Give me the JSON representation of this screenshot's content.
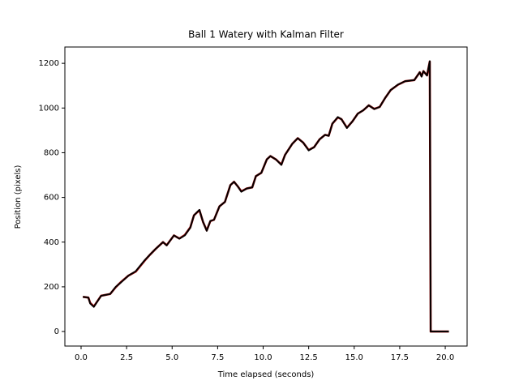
{
  "chart_data": {
    "type": "line",
    "title": "Ball 1 Watery with Kalman Filter",
    "xlabel": "Time elapsed (seconds)",
    "ylabel": "Position (pixels)",
    "x": [
      0.1,
      0.4,
      0.5,
      0.7,
      1.1,
      1.6,
      1.9,
      2.2,
      2.6,
      3.0,
      3.5,
      3.8,
      4.1,
      4.5,
      4.7,
      5.1,
      5.4,
      5.7,
      6.0,
      6.2,
      6.5,
      6.7,
      6.9,
      7.1,
      7.3,
      7.6,
      7.9,
      8.2,
      8.4,
      8.6,
      8.8,
      9.1,
      9.4,
      9.6,
      9.9,
      10.2,
      10.4,
      10.7,
      11.0,
      11.2,
      11.6,
      11.9,
      12.2,
      12.5,
      12.8,
      13.1,
      13.4,
      13.6,
      13.8,
      14.1,
      14.3,
      14.6,
      14.9,
      15.2,
      15.5,
      15.8,
      16.1,
      16.4,
      16.7,
      17.0,
      17.4,
      17.8,
      18.3,
      18.6,
      18.7,
      18.8,
      19.0,
      19.15,
      19.2,
      20.2
    ],
    "series": [
      {
        "color": "#8b0000",
        "values": [
          155,
          152,
          128,
          112,
          160,
          168,
          198,
          222,
          250,
          268,
          318,
          345,
          370,
          400,
          386,
          430,
          416,
          432,
          466,
          520,
          543,
          490,
          452,
          494,
          500,
          560,
          580,
          655,
          670,
          650,
          627,
          640,
          645,
          695,
          710,
          770,
          785,
          770,
          747,
          790,
          840,
          865,
          845,
          812,
          825,
          860,
          880,
          876,
          930,
          958,
          950,
          912,
          940,
          975,
          990,
          1012,
          996,
          1005,
          1045,
          1080,
          1104,
          1120,
          1125,
          1160,
          1142,
          1165,
          1146,
          1208,
          0,
          0
        ]
      },
      {
        "color": "#000000",
        "values": [
          155,
          152,
          125,
          110,
          160,
          168,
          200,
          220,
          250,
          270,
          320,
          345,
          370,
          400,
          385,
          430,
          415,
          430,
          465,
          520,
          545,
          490,
          450,
          495,
          500,
          560,
          580,
          655,
          670,
          650,
          625,
          640,
          645,
          695,
          710,
          770,
          785,
          770,
          745,
          790,
          840,
          865,
          845,
          810,
          825,
          860,
          880,
          875,
          930,
          960,
          950,
          910,
          940,
          975,
          990,
          1012,
          995,
          1005,
          1045,
          1080,
          1105,
          1120,
          1125,
          1160,
          1140,
          1165,
          1145,
          1210,
          0,
          0
        ]
      }
    ],
    "xlim": [
      -0.89,
      21.2
    ],
    "ylim": [
      -65,
      1273
    ],
    "xticks": [
      {
        "value": 0,
        "label": "0.0"
      },
      {
        "value": 2.5,
        "label": "2.5"
      },
      {
        "value": 5,
        "label": "5.0"
      },
      {
        "value": 7.5,
        "label": "7.5"
      },
      {
        "value": 10,
        "label": "10.0"
      },
      {
        "value": 12.5,
        "label": "12.5"
      },
      {
        "value": 15,
        "label": "15.0"
      },
      {
        "value": 17.5,
        "label": "17.5"
      },
      {
        "value": 20,
        "label": "20.0"
      }
    ],
    "yticks": [
      0,
      200,
      400,
      600,
      800,
      1000,
      1200
    ],
    "grid": false
  }
}
